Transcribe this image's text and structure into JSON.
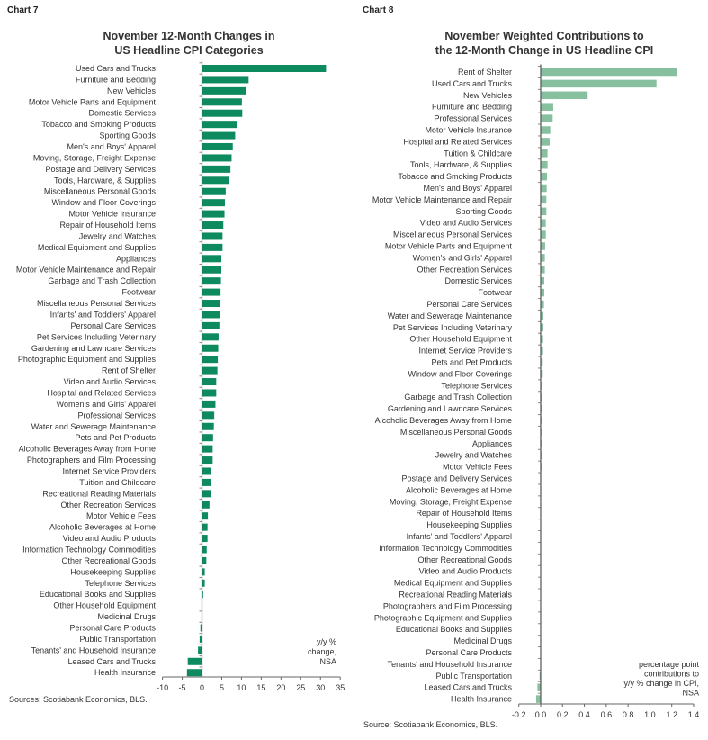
{
  "chart_data": [
    {
      "type": "bar",
      "orientation": "horizontal",
      "chart_label": "Chart 7",
      "title_line1": "November 12-Month Changes in",
      "title_line2": "US Headline CPI Categories",
      "unit_note": [
        "y/y %",
        "change,",
        "NSA"
      ],
      "source": "Sources: Scotiabank Economics, BLS.",
      "xlim": [
        -10,
        35
      ],
      "ticks": [
        -10,
        -5,
        0,
        5,
        10,
        15,
        20,
        25,
        30,
        35
      ],
      "color": "#0e8a5f",
      "categories": [
        "Used Cars and Trucks",
        "Furniture and Bedding",
        "New Vehicles",
        "Motor Vehicle Parts and Equipment",
        "Domestic Services",
        "Tobacco and Smoking Products",
        "Sporting Goods",
        "Men's and Boys' Apparel",
        "Moving, Storage, Freight Expense",
        "Postage and Delivery Services",
        "Tools, Hardware, & Supplies",
        "Miscellaneous Personal Goods",
        "Window and Floor Coverings",
        "Motor Vehicle Insurance",
        "Repair of Household Items",
        "Jewelry and Watches",
        "Medical Equipment and Supplies",
        "Appliances",
        "Motor Vehicle Maintenance and Repair",
        "Garbage and Trash Collection",
        "Footwear",
        "Miscellaneous Personal Services",
        "Infants' and Toddlers' Apparel",
        "Personal Care Services",
        "Pet Services Including Veterinary",
        "Gardening and Lawncare Services",
        "Photographic Equipment and Supplies",
        "Rent of Shelter",
        "Video and Audio Services",
        "Hospital and Related Services",
        "Women's and Girls' Apparel",
        "Professional Services",
        "Water and Sewerage Maintenance",
        "Pets and Pet Products",
        "Alcoholic Beverages Away from Home",
        "Photographers and Film Processing",
        "Internet Service Providers",
        "Tuition and Childcare",
        "Recreational Reading Materials",
        "Other Recreation Services",
        "Motor Vehicle Fees",
        "Alcoholic Beverages at Home",
        "Video and Audio Products",
        "Information Technology Commodities",
        "Other Recreational Goods",
        "Housekeeping Supplies",
        "Telephone Services",
        "Educational Books and Supplies",
        "Other Household Equipment",
        "Medicinal Drugs",
        "Personal Care Products",
        "Public Transportation",
        "Tenants' and Household Insurance",
        "Leased Cars and Trucks",
        "Health Insurance"
      ],
      "values": [
        31.4,
        11.8,
        11.1,
        10.1,
        10.2,
        8.9,
        8.4,
        7.8,
        7.5,
        7.2,
        6.9,
        6.0,
        5.8,
        5.7,
        5.4,
        5.2,
        5.2,
        4.9,
        4.9,
        4.8,
        4.7,
        4.6,
        4.5,
        4.4,
        4.2,
        4.1,
        4.0,
        3.9,
        3.6,
        3.6,
        3.4,
        3.1,
        3.0,
        2.8,
        2.7,
        2.7,
        2.3,
        2.2,
        2.2,
        1.9,
        1.5,
        1.4,
        1.4,
        1.2,
        1.1,
        0.7,
        0.7,
        0.3,
        0.0,
        0.0,
        -0.4,
        -0.6,
        -1.0,
        -3.6,
        -3.8
      ]
    },
    {
      "type": "bar",
      "orientation": "horizontal",
      "chart_label": "Chart 8",
      "title_line1": "November Weighted Contributions to",
      "title_line2": "the 12-Month Change in US Headline CPI",
      "unit_note": [
        "percentage point",
        "contributions to",
        "y/y % change in CPI,",
        "NSA"
      ],
      "source": "Source: Scotiabank Economics, BLS.",
      "xlim": [
        -0.2,
        1.4
      ],
      "ticks": [
        "-0.2",
        "0.0",
        "0.2",
        "0.4",
        "0.6",
        "0.8",
        "1.0",
        "1.2",
        "1.4"
      ],
      "color": "#86c09f",
      "categories": [
        "Rent of Shelter",
        "Used Cars and Trucks",
        "New Vehicles",
        "Furniture and Bedding",
        "Professional Services",
        "Motor Vehicle Insurance",
        "Hospital and Related Services",
        "Tuition & Childcare",
        "Tools, Hardware, & Supplies",
        "Tobacco and Smoking Products",
        "Men's and Boys' Apparel",
        "Motor Vehicle Maintenance and Repair",
        "Sporting Goods",
        "Video and Audio Services",
        "Miscellaneous Personal Services",
        "Motor Vehicle Parts and Equipment",
        "Women's and Girls' Apparel",
        "Other Recreation Services",
        "Domestic Services",
        "Footwear",
        "Personal Care Services",
        "Water and Sewerage Maintenance",
        "Pet Services Including Veterinary",
        "Other Household Equipment",
        "Internet Service Providers",
        "Pets and Pet Products",
        "Window and Floor Coverings",
        "Telephone Services",
        "Garbage and Trash Collection",
        "Gardening and Lawncare Services",
        "Alcoholic Beverages Away from Home",
        "Miscellaneous Personal Goods",
        "Appliances",
        "Jewelry and Watches",
        "Motor Vehicle Fees",
        "Postage and Delivery Services",
        "Alcoholic Beverages at Home",
        "Moving, Storage, Freight Expense",
        "Repair of Household Items",
        "Housekeeping Supplies",
        "Infants' and Toddlers' Apparel",
        "Information Technology Commodities",
        "Other Recreational Goods",
        "Video and Audio Products",
        "Medical Equipment and Supplies",
        "Recreational Reading Materials",
        "Photographers and Film Processing",
        "Photographic Equipment and Supplies",
        "Educational Books and Supplies",
        "Medicinal Drugs",
        "Personal Care Products",
        "Tenants' and Household Insurance",
        "Public Transportation",
        "Leased Cars and Trucks",
        "Health Insurance"
      ],
      "values": [
        1.25,
        1.06,
        0.43,
        0.115,
        0.11,
        0.088,
        0.082,
        0.063,
        0.063,
        0.058,
        0.055,
        0.052,
        0.052,
        0.047,
        0.047,
        0.041,
        0.038,
        0.038,
        0.033,
        0.033,
        0.03,
        0.025,
        0.025,
        0.022,
        0.022,
        0.019,
        0.019,
        0.016,
        0.014,
        0.014,
        0.013,
        0.013,
        0.012,
        0.008,
        0.008,
        0.005,
        0.005,
        0.003,
        0.002,
        0.002,
        0.001,
        0.001,
        0.001,
        0.001,
        0.001,
        0.001,
        0.0,
        0.0,
        0.0,
        0.0,
        -0.002,
        -0.003,
        -0.01,
        -0.03,
        -0.041
      ]
    }
  ]
}
